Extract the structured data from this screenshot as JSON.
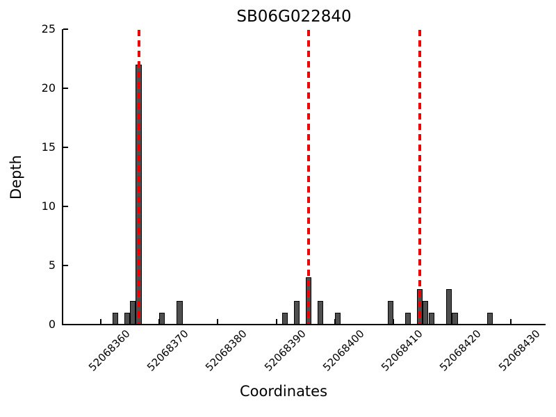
{
  "chart_data": {
    "type": "bar",
    "title": "SB06G022840",
    "xlabel": "Coordinates",
    "ylabel": "Depth",
    "xlim": [
      52068353.5,
      52068436.0
    ],
    "ylim": [
      0,
      25
    ],
    "yticks": [
      0,
      5,
      10,
      15,
      20,
      25
    ],
    "xticks": [
      52068360,
      52068370,
      52068380,
      52068390,
      52068400,
      52068410,
      52068420,
      52068430
    ],
    "bar_width": 1,
    "bars": [
      {
        "x": 52068362,
        "depth": 1
      },
      {
        "x": 52068364,
        "depth": 1
      },
      {
        "x": 52068365,
        "depth": 2
      },
      {
        "x": 52068366,
        "depth": 22
      },
      {
        "x": 52068370,
        "depth": 1
      },
      {
        "x": 52068373,
        "depth": 2
      },
      {
        "x": 52068391,
        "depth": 1
      },
      {
        "x": 52068393,
        "depth": 2
      },
      {
        "x": 52068395,
        "depth": 4
      },
      {
        "x": 52068397,
        "depth": 2
      },
      {
        "x": 52068400,
        "depth": 1
      },
      {
        "x": 52068409,
        "depth": 2
      },
      {
        "x": 52068412,
        "depth": 1
      },
      {
        "x": 52068414,
        "depth": 3
      },
      {
        "x": 52068415,
        "depth": 2
      },
      {
        "x": 52068416,
        "depth": 1
      },
      {
        "x": 52068419,
        "depth": 3
      },
      {
        "x": 52068420,
        "depth": 1
      },
      {
        "x": 52068426,
        "depth": 1
      }
    ],
    "vlines": [
      52068366.5,
      52068395.5,
      52068414.5
    ],
    "styles": {
      "background": "#ffffff",
      "bar_fill": "#4f4f4f",
      "bar_edge": "#000000",
      "vline_color": "#ee0000",
      "vline_style": "dashed",
      "axis_color": "#000000",
      "tick_direction": "in",
      "grid": false,
      "legend": null
    }
  }
}
